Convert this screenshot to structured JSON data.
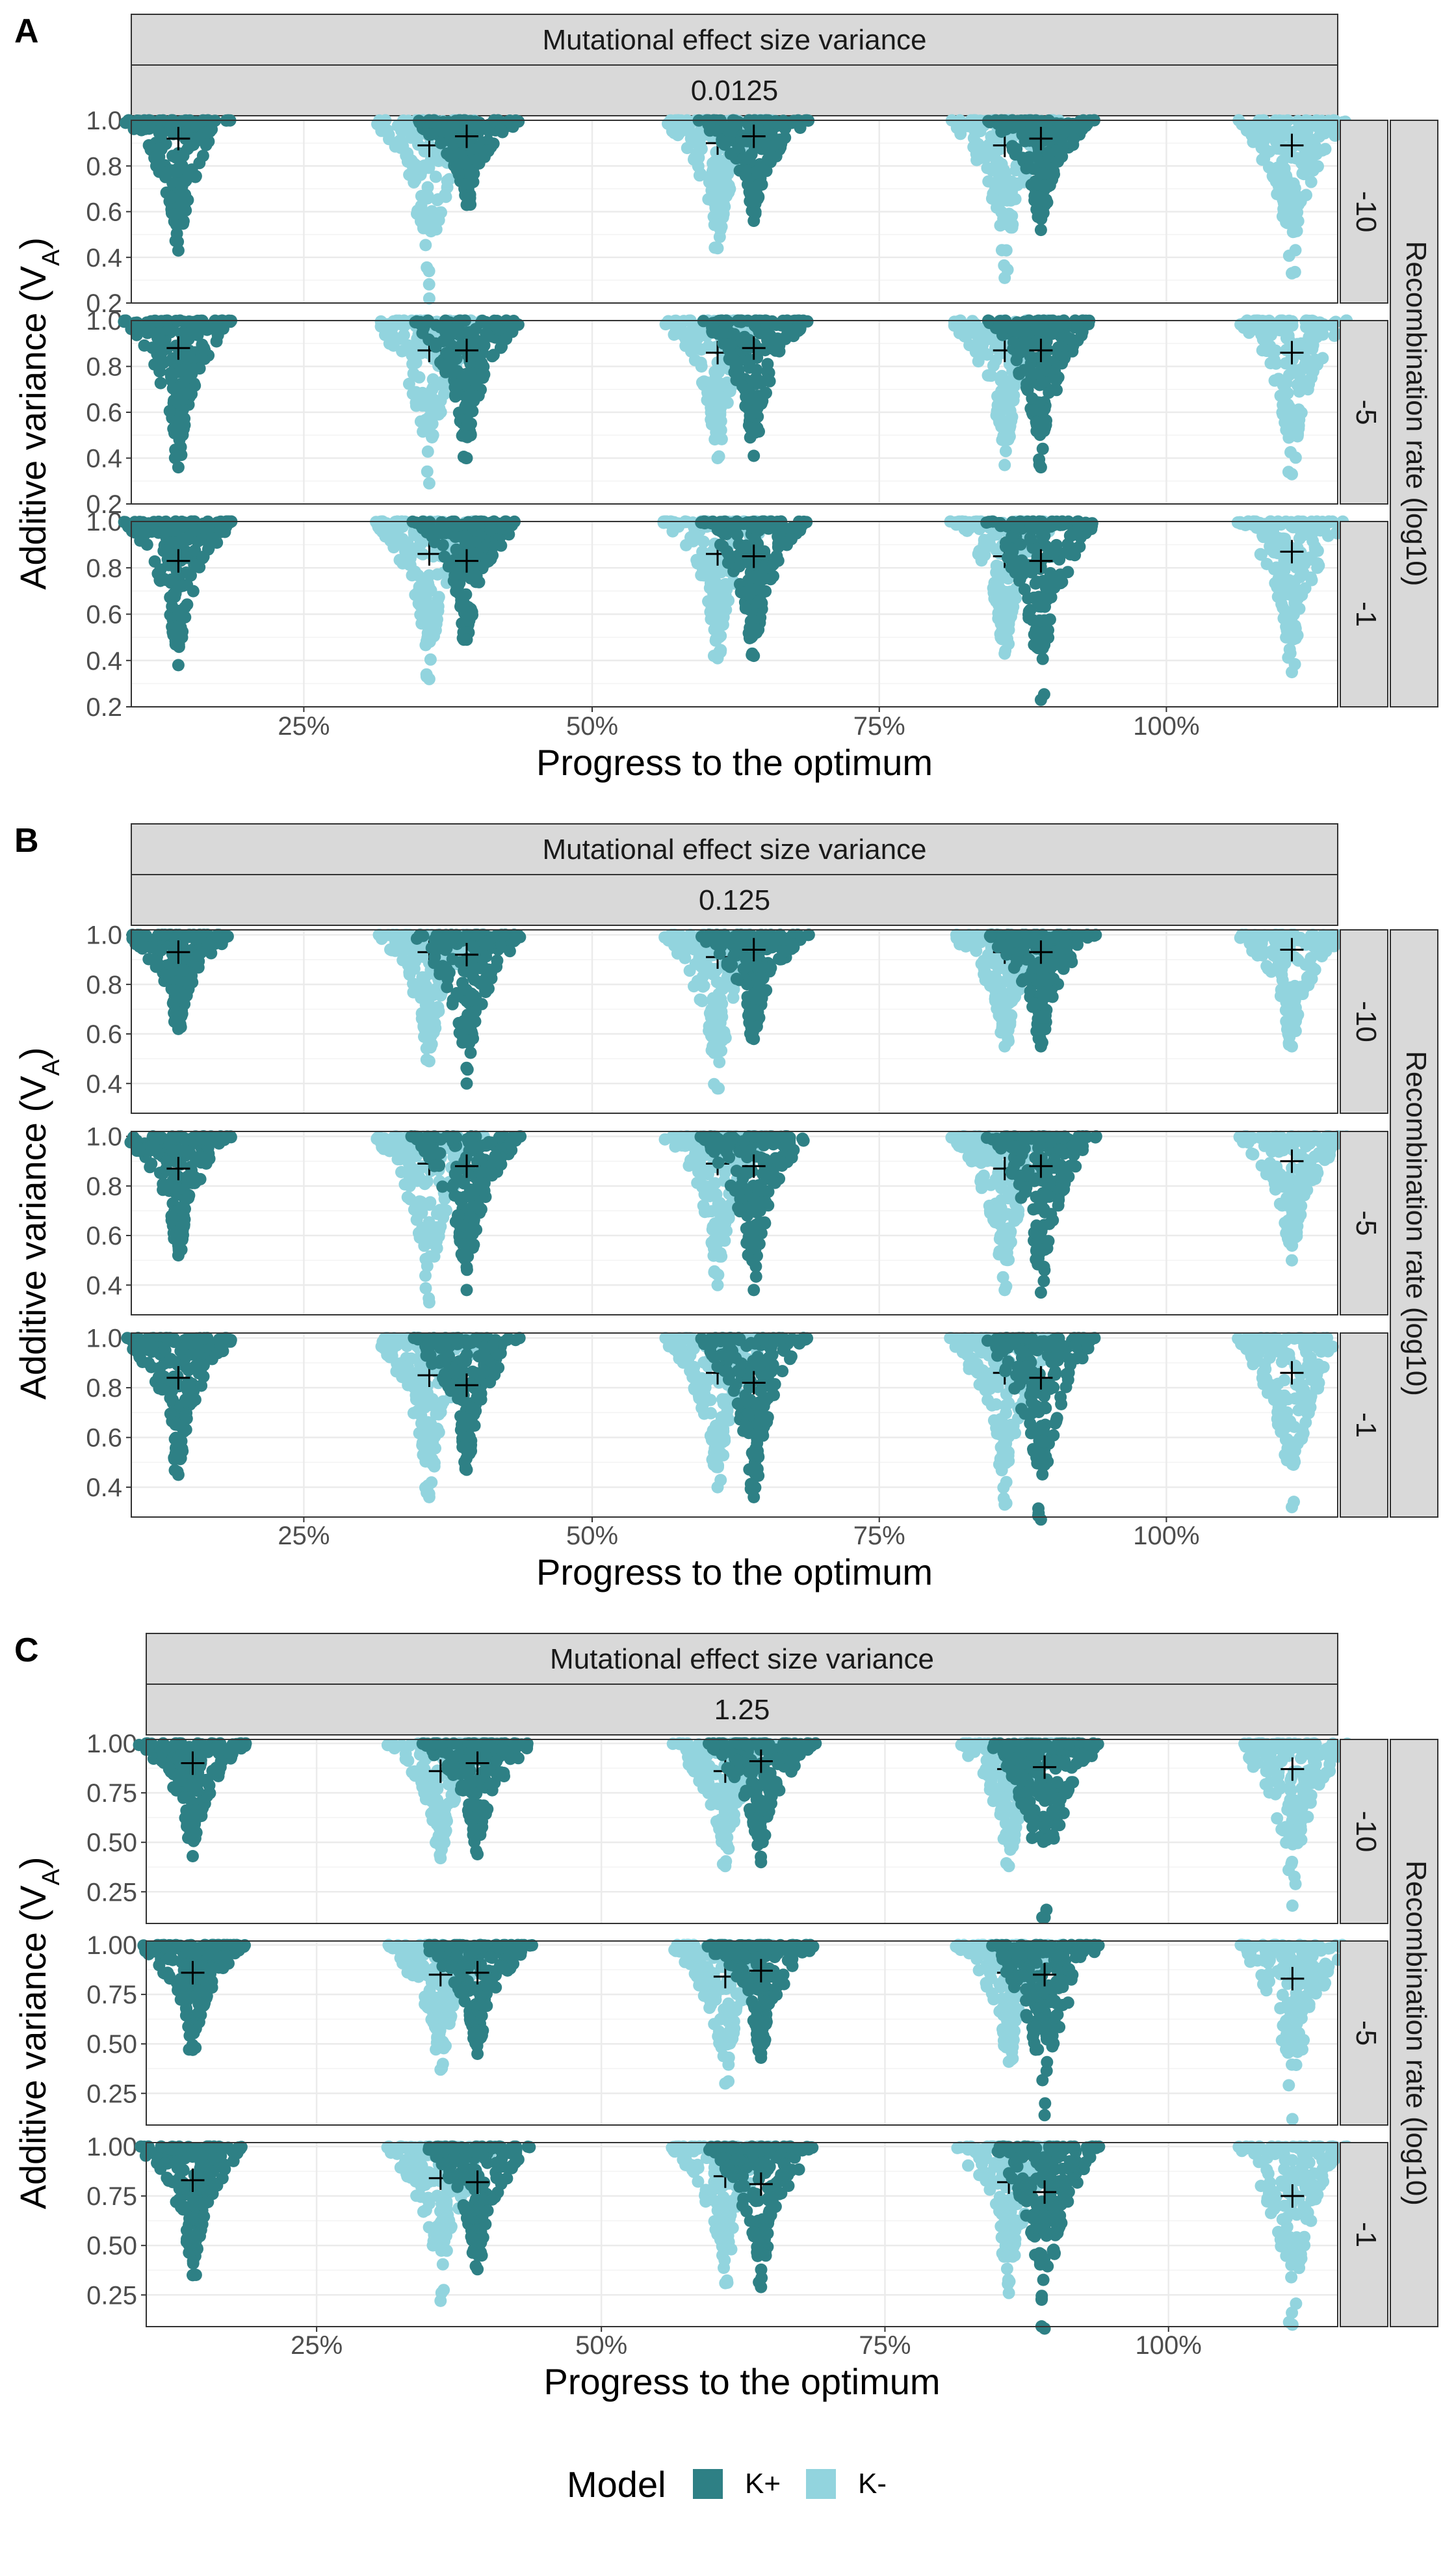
{
  "figure": {
    "legend": {
      "title": "Model",
      "items": [
        {
          "label": "K+",
          "color": "#2E8085"
        },
        {
          "label": "K-",
          "color": "#92D4DE"
        }
      ]
    }
  },
  "chart_data": [
    {
      "type": "scatter",
      "panel_label": "A",
      "strip_title": "Mutational effect size variance",
      "strip_value": "0.0125",
      "xlabel": "Progress to the optimum",
      "ylabel": "Additive variance (VA)",
      "right_strip_title": "Recombination rate (log10)",
      "x_categories": [
        "25%",
        "50%",
        "75%",
        "100%"
      ],
      "series_colors": {
        "K+": "#2E8085",
        "K-": "#92D4DE"
      },
      "rows": [
        {
          "label": "-10",
          "y_ticks": [
            "0.2",
            "0.4",
            "0.6",
            "0.8",
            "1.0"
          ],
          "ylim": [
            0.2,
            1.0
          ],
          "means": {
            "K+": [
              0.92,
              0.93,
              0.93,
              0.92
            ],
            "K-": [
              0.89,
              0.9,
              0.89,
              0.89
            ]
          },
          "mins": {
            "K+": [
              0.43,
              0.63,
              0.56,
              0.52
            ],
            "K-": [
              0.22,
              0.44,
              0.31,
              0.33
            ]
          }
        },
        {
          "label": "-5",
          "y_ticks": [
            "0.2",
            "0.4",
            "0.6",
            "0.8",
            "1.0"
          ],
          "ylim": [
            0.2,
            1.0
          ],
          "means": {
            "K+": [
              0.88,
              0.87,
              0.88,
              0.87
            ],
            "K-": [
              0.87,
              0.86,
              0.87,
              0.86
            ]
          },
          "mins": {
            "K+": [
              0.36,
              0.4,
              0.41,
              0.36
            ],
            "K-": [
              0.29,
              0.4,
              0.37,
              0.33
            ]
          }
        },
        {
          "label": "-1",
          "y_ticks": [
            "0.2",
            "0.4",
            "0.6",
            "0.8",
            "1.0"
          ],
          "ylim": [
            0.2,
            1.0
          ],
          "means": {
            "K+": [
              0.83,
              0.83,
              0.85,
              0.83
            ],
            "K-": [
              0.86,
              0.86,
              0.85,
              0.87
            ]
          },
          "mins": {
            "K+": [
              0.38,
              0.49,
              0.42,
              0.23
            ],
            "K-": [
              0.32,
              0.41,
              0.43,
              0.35
            ]
          }
        }
      ]
    },
    {
      "type": "scatter",
      "panel_label": "B",
      "strip_title": "Mutational effect size variance",
      "strip_value": "0.125",
      "xlabel": "Progress to the optimum",
      "ylabel": "Additive variance (VA)",
      "right_strip_title": "Recombination rate (log10)",
      "x_categories": [
        "25%",
        "50%",
        "75%",
        "100%"
      ],
      "series_colors": {
        "K+": "#2E8085",
        "K-": "#92D4DE"
      },
      "rows": [
        {
          "label": "-10",
          "y_ticks": [
            "0.4",
            "0.6",
            "0.8",
            "1.0"
          ],
          "ylim": [
            0.28,
            1.02
          ],
          "means": {
            "K+": [
              0.93,
              0.92,
              0.94,
              0.93
            ],
            "K-": [
              0.93,
              0.91,
              0.93,
              0.94
            ]
          },
          "mins": {
            "K+": [
              0.62,
              0.4,
              0.58,
              0.55
            ],
            "K-": [
              0.49,
              0.38,
              0.55,
              0.55
            ]
          }
        },
        {
          "label": "-5",
          "y_ticks": [
            "0.4",
            "0.6",
            "0.8",
            "1.0"
          ],
          "ylim": [
            0.28,
            1.02
          ],
          "means": {
            "K+": [
              0.87,
              0.88,
              0.88,
              0.88
            ],
            "K-": [
              0.89,
              0.89,
              0.87,
              0.9
            ]
          },
          "mins": {
            "K+": [
              0.52,
              0.38,
              0.38,
              0.37
            ],
            "K-": [
              0.33,
              0.4,
              0.38,
              0.5
            ]
          }
        },
        {
          "label": "-1",
          "y_ticks": [
            "0.4",
            "0.6",
            "0.8",
            "1.0"
          ],
          "ylim": [
            0.28,
            1.02
          ],
          "means": {
            "K+": [
              0.84,
              0.81,
              0.82,
              0.84
            ],
            "K-": [
              0.85,
              0.86,
              0.86,
              0.86
            ]
          },
          "mins": {
            "K+": [
              0.45,
              0.47,
              0.36,
              0.27
            ],
            "K-": [
              0.36,
              0.4,
              0.33,
              0.32
            ]
          }
        }
      ]
    },
    {
      "type": "scatter",
      "panel_label": "C",
      "strip_title": "Mutational effect size variance",
      "strip_value": "1.25",
      "xlabel": "Progress to the optimum",
      "ylabel": "Additive variance (VA)",
      "right_strip_title": "Recombination rate (log10)",
      "x_categories": [
        "25%",
        "50%",
        "75%",
        "100%"
      ],
      "series_colors": {
        "K+": "#2E8085",
        "K-": "#92D4DE"
      },
      "rows": [
        {
          "label": "-10",
          "y_ticks": [
            "0.25",
            "0.50",
            "0.75",
            "1.00"
          ],
          "ylim": [
            0.09,
            1.02
          ],
          "means": {
            "K+": [
              0.9,
              0.9,
              0.91,
              0.88
            ],
            "K-": [
              0.86,
              0.86,
              0.87,
              0.87
            ]
          },
          "mins": {
            "K+": [
              0.43,
              0.44,
              0.4,
              0.12
            ],
            "K-": [
              0.42,
              0.38,
              0.38,
              0.18
            ]
          }
        },
        {
          "label": "-5",
          "y_ticks": [
            "0.25",
            "0.50",
            "0.75",
            "1.00"
          ],
          "ylim": [
            0.09,
            1.02
          ],
          "means": {
            "K+": [
              0.86,
              0.86,
              0.87,
              0.85
            ],
            "K-": [
              0.85,
              0.84,
              0.86,
              0.83
            ]
          },
          "mins": {
            "K+": [
              0.47,
              0.45,
              0.43,
              0.14
            ],
            "K-": [
              0.37,
              0.3,
              0.41,
              0.12
            ]
          }
        },
        {
          "label": "-1",
          "y_ticks": [
            "0.25",
            "0.50",
            "0.75",
            "1.00"
          ],
          "ylim": [
            0.09,
            1.02
          ],
          "means": {
            "K+": [
              0.83,
              0.82,
              0.81,
              0.77
            ],
            "K-": [
              0.84,
              0.85,
              0.82,
              0.75
            ]
          },
          "mins": {
            "K+": [
              0.35,
              0.38,
              0.29,
              0.08
            ],
            "K-": [
              0.22,
              0.31,
              0.26,
              0.1
            ]
          }
        }
      ]
    }
  ]
}
